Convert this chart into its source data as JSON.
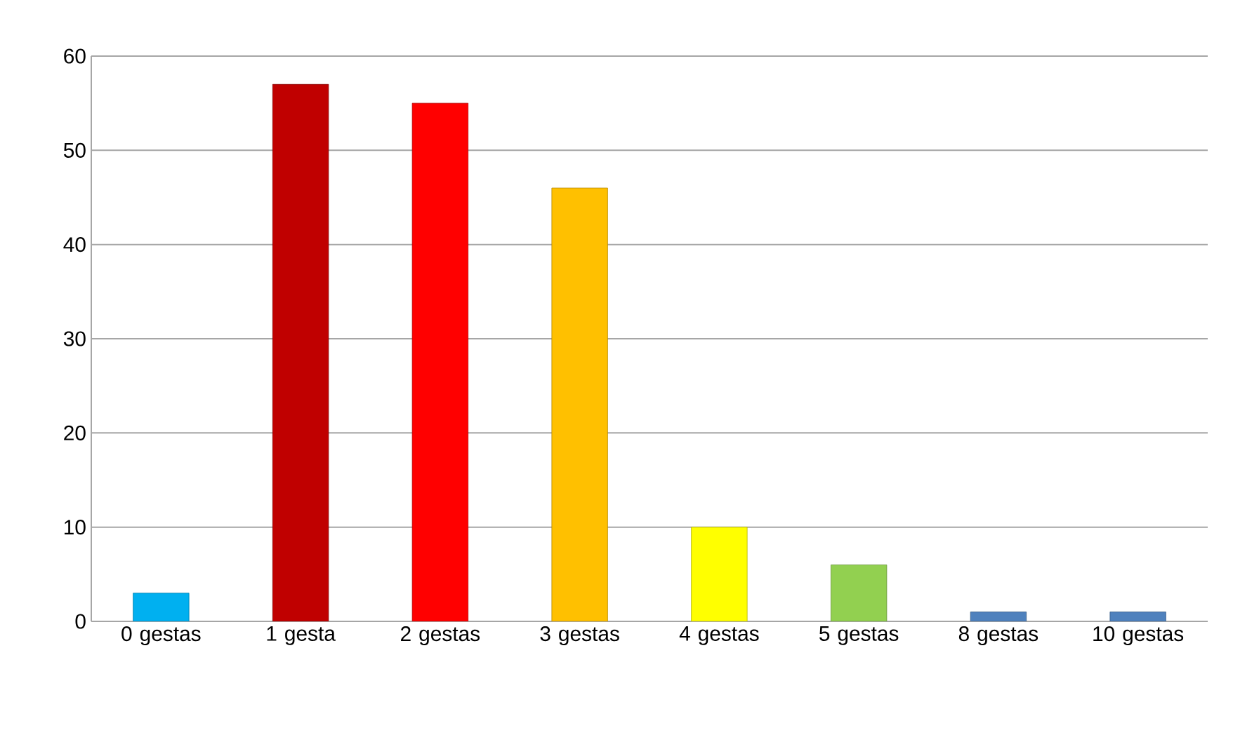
{
  "chart_data": {
    "type": "bar",
    "categories": [
      "0 gestas",
      "1 gesta",
      "2 gestas",
      "3 gestas",
      "4 gestas",
      "5 gestas",
      "8 gestas",
      "10 gestas"
    ],
    "values": [
      3,
      57,
      55,
      46,
      10,
      6,
      1,
      1
    ],
    "colors": [
      "#00b0f0",
      "#c00000",
      "#ff0000",
      "#ffc000",
      "#ffff00",
      "#92d050",
      "#4f81bd",
      "#4f81bd"
    ],
    "ylim": [
      0,
      60
    ],
    "yticks": [
      0,
      10,
      20,
      30,
      40,
      50,
      60
    ],
    "grid": "y"
  }
}
